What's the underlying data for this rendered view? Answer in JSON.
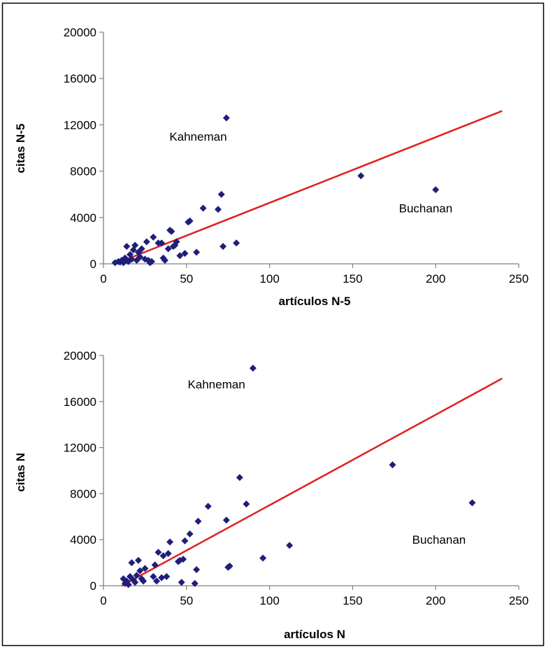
{
  "colors": {
    "marker": "#1f1f7a",
    "trendline": "#e02020",
    "axis": "#808080",
    "border": "#000000"
  },
  "chart_data": [
    {
      "type": "scatter",
      "xlabel": "artículos N-5",
      "ylabel": "citas N-5",
      "xlim": [
        0,
        250
      ],
      "ylim": [
        0,
        20000
      ],
      "xticks": [
        "0",
        "50",
        "100",
        "150",
        "200",
        "250"
      ],
      "yticks": [
        "0",
        "4000",
        "8000",
        "12000",
        "16000",
        "20000"
      ],
      "grid": false,
      "legend": "none",
      "points": [
        [
          7,
          100
        ],
        [
          9,
          200
        ],
        [
          10,
          150
        ],
        [
          11,
          300
        ],
        [
          12,
          100
        ],
        [
          13,
          500
        ],
        [
          14,
          1500
        ],
        [
          15,
          200
        ],
        [
          16,
          800
        ],
        [
          17,
          400
        ],
        [
          18,
          1200
        ],
        [
          19,
          1600
        ],
        [
          20,
          300
        ],
        [
          21,
          1000
        ],
        [
          22,
          600
        ],
        [
          23,
          1300
        ],
        [
          25,
          400
        ],
        [
          26,
          1900
        ],
        [
          27,
          300
        ],
        [
          28,
          100
        ],
        [
          29,
          200
        ],
        [
          30,
          2300
        ],
        [
          33,
          1800
        ],
        [
          35,
          1800
        ],
        [
          36,
          500
        ],
        [
          37,
          300
        ],
        [
          39,
          1300
        ],
        [
          40,
          2900
        ],
        [
          41,
          2800
        ],
        [
          42,
          1500
        ],
        [
          43,
          1600
        ],
        [
          44,
          1900
        ],
        [
          46,
          700
        ],
        [
          49,
          900
        ],
        [
          51,
          3600
        ],
        [
          52,
          3700
        ],
        [
          56,
          1000
        ],
        [
          60,
          4800
        ],
        [
          69,
          4700
        ],
        [
          71,
          6000
        ],
        [
          72,
          1500
        ],
        [
          74,
          12600
        ],
        [
          80,
          1800
        ],
        [
          155,
          7600
        ],
        [
          200,
          6400
        ]
      ],
      "trendline": {
        "x": [
          7,
          240
        ],
        "y": [
          0,
          13200
        ]
      },
      "annotations": [
        {
          "text": "Kahneman",
          "x": 57,
          "y": 11000
        },
        {
          "text": "Buchanan",
          "x": 194,
          "y": 4800
        }
      ]
    },
    {
      "type": "scatter",
      "xlabel": "artículos N",
      "ylabel": "citas N",
      "xlim": [
        0,
        250
      ],
      "ylim": [
        0,
        20000
      ],
      "xticks": [
        "0",
        "50",
        "100",
        "150",
        "200",
        "250"
      ],
      "yticks": [
        "0",
        "4000",
        "8000",
        "12000",
        "16000",
        "20000"
      ],
      "grid": false,
      "legend": "none",
      "points": [
        [
          12,
          600
        ],
        [
          13,
          200
        ],
        [
          14,
          400
        ],
        [
          15,
          100
        ],
        [
          16,
          800
        ],
        [
          17,
          2000
        ],
        [
          18,
          500
        ],
        [
          19,
          300
        ],
        [
          20,
          900
        ],
        [
          21,
          2200
        ],
        [
          22,
          1300
        ],
        [
          23,
          600
        ],
        [
          24,
          400
        ],
        [
          25,
          1500
        ],
        [
          30,
          800
        ],
        [
          31,
          1800
        ],
        [
          32,
          400
        ],
        [
          33,
          2900
        ],
        [
          35,
          700
        ],
        [
          36,
          2600
        ],
        [
          38,
          800
        ],
        [
          39,
          2800
        ],
        [
          40,
          3800
        ],
        [
          45,
          2100
        ],
        [
          46,
          2200
        ],
        [
          47,
          300
        ],
        [
          48,
          2300
        ],
        [
          49,
          3900
        ],
        [
          52,
          4500
        ],
        [
          55,
          200
        ],
        [
          56,
          1400
        ],
        [
          57,
          5600
        ],
        [
          63,
          6900
        ],
        [
          74,
          5700
        ],
        [
          75,
          1600
        ],
        [
          76,
          1700
        ],
        [
          82,
          9400
        ],
        [
          86,
          7100
        ],
        [
          90,
          18900
        ],
        [
          96,
          2400
        ],
        [
          112,
          3500
        ],
        [
          174,
          10500
        ],
        [
          222,
          7200
        ]
      ],
      "trendline": {
        "x": [
          11,
          240
        ],
        "y": [
          0,
          18000
        ]
      },
      "annotations": [
        {
          "text": "Kahneman",
          "x": 68,
          "y": 17500
        },
        {
          "text": "Buchanan",
          "x": 202,
          "y": 4000
        }
      ]
    }
  ]
}
